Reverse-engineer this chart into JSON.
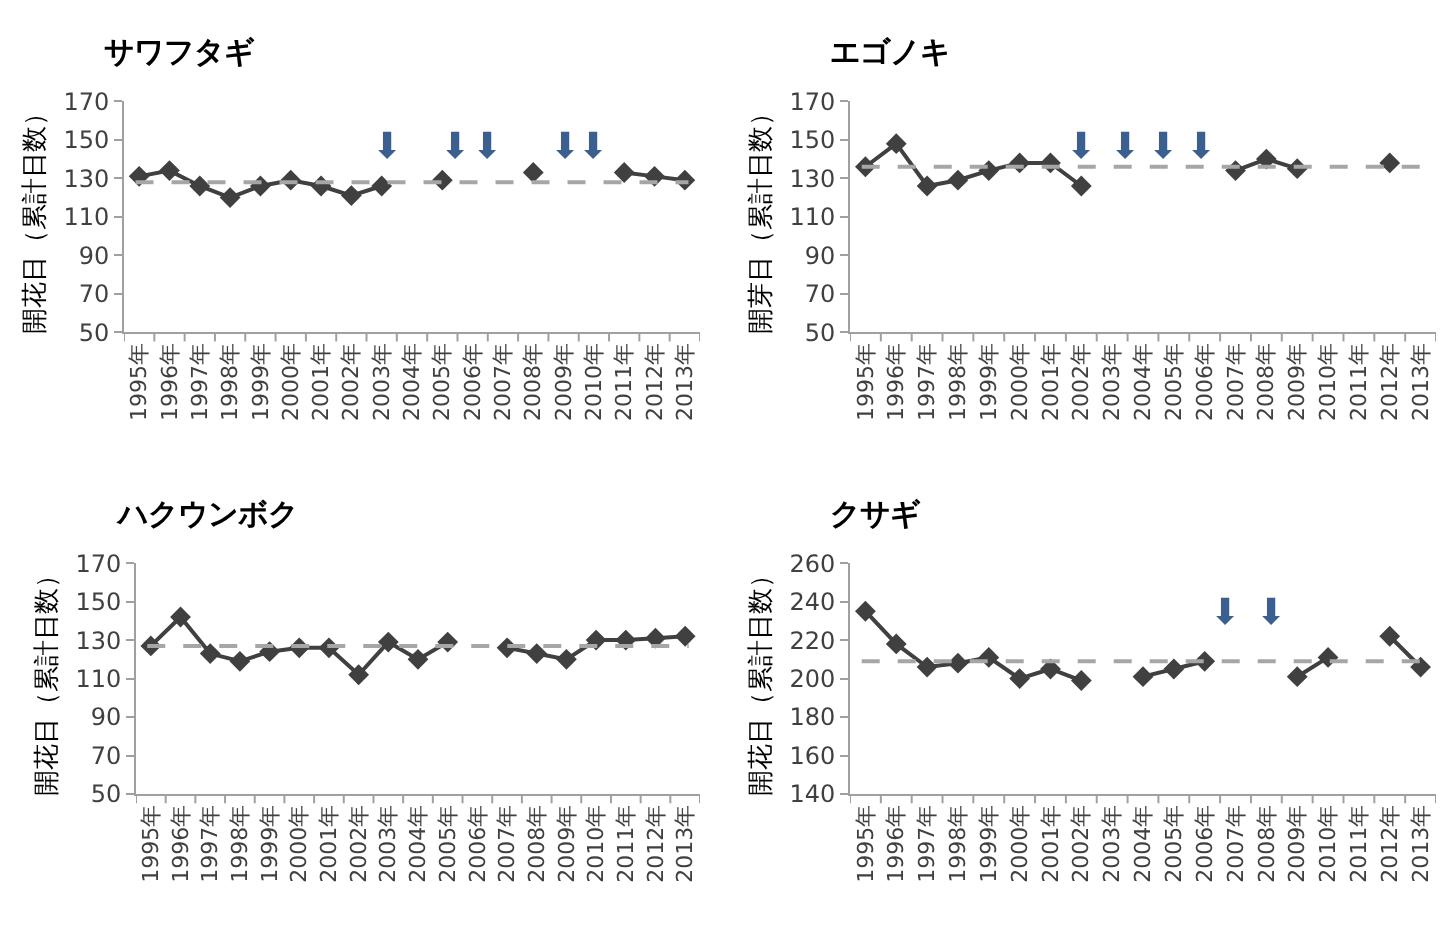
{
  "chart_data": [
    {
      "type": "line",
      "title": "サワフタギ",
      "ylabel": "開花日（累計日数）",
      "categories": [
        "1995年",
        "1996年",
        "1997年",
        "1998年",
        "1999年",
        "2000年",
        "2001年",
        "2002年",
        "2003年",
        "2004年",
        "2005年",
        "2006年",
        "2007年",
        "2008年",
        "2009年",
        "2010年",
        "2011年",
        "2012年",
        "2013年"
      ],
      "series": [
        {
          "color": "#404040",
          "values": [
            131,
            134,
            126,
            120,
            126,
            129,
            126,
            121,
            126,
            null,
            129,
            null,
            null,
            133,
            null,
            null,
            133,
            131,
            129
          ]
        }
      ],
      "ylim": [
        50,
        170
      ],
      "yticks": [
        50,
        70,
        90,
        110,
        130,
        150,
        170
      ],
      "marker": "diamond",
      "line_style": "solid",
      "ref_lines": [
        {
          "axis": "y",
          "value": 128,
          "color": "#a6a6a6",
          "line_style": "dashed"
        }
      ],
      "annotations": [
        "⬇",
        "⬇",
        "⬇",
        "⬇",
        "⬇"
      ]
    },
    {
      "type": "line",
      "title": "エゴノキ",
      "ylabel": "開芽日（累計日数）",
      "categories": [
        "1995年",
        "1996年",
        "1997年",
        "1998年",
        "1999年",
        "2000年",
        "2001年",
        "2002年",
        "2003年",
        "2004年",
        "2005年",
        "2006年",
        "2007年",
        "2008年",
        "2009年",
        "2010年",
        "2011年",
        "2012年",
        "2013年"
      ],
      "series": [
        {
          "color": "#404040",
          "values": [
            136,
            148,
            126,
            129,
            134,
            138,
            138,
            126,
            null,
            null,
            null,
            null,
            134,
            140,
            135,
            null,
            null,
            138,
            null
          ]
        }
      ],
      "ylim": [
        50,
        170
      ],
      "yticks": [
        50,
        70,
        90,
        110,
        130,
        150,
        170
      ],
      "marker": "diamond",
      "line_style": "solid",
      "ref_lines": [
        {
          "axis": "y",
          "value": 136,
          "color": "#a6a6a6",
          "line_style": "dashed"
        }
      ],
      "annotations": [
        "⬇",
        "⬇",
        "⬇",
        "⬇"
      ]
    },
    {
      "type": "line",
      "title": "ハクウンボク",
      "ylabel": "開花日（累計日数）",
      "categories": [
        "1995年",
        "1996年",
        "1997年",
        "1998年",
        "1999年",
        "2000年",
        "2001年",
        "2002年",
        "2003年",
        "2004年",
        "2005年",
        "2006年",
        "2007年",
        "2008年",
        "2009年",
        "2010年",
        "2011年",
        "2012年",
        "2013年"
      ],
      "series": [
        {
          "color": "#404040",
          "values": [
            127,
            142,
            123,
            119,
            124,
            126,
            126,
            112,
            129,
            120,
            129,
            null,
            126,
            123,
            120,
            130,
            130,
            131,
            132
          ]
        }
      ],
      "ylim": [
        50,
        170
      ],
      "yticks": [
        50,
        70,
        90,
        110,
        130,
        150,
        170
      ],
      "marker": "diamond",
      "line_style": "solid",
      "ref_lines": [
        {
          "axis": "y",
          "value": 127,
          "color": "#a6a6a6",
          "line_style": "dashed"
        }
      ]
    },
    {
      "type": "line",
      "title": "クサギ",
      "ylabel": "開花日（累計日数）",
      "categories": [
        "1995年",
        "1996年",
        "1997年",
        "1998年",
        "1999年",
        "2000年",
        "2001年",
        "2002年",
        "2003年",
        "2004年",
        "2005年",
        "2006年",
        "2007年",
        "2008年",
        "2009年",
        "2010年",
        "2011年",
        "2012年",
        "2013年"
      ],
      "series": [
        {
          "color": "#404040",
          "values": [
            235,
            218,
            206,
            208,
            211,
            200,
            205,
            199,
            null,
            201,
            205,
            209,
            null,
            null,
            201,
            211,
            null,
            222,
            206
          ]
        }
      ],
      "ylim": [
        140,
        260
      ],
      "yticks": [
        140,
        160,
        180,
        200,
        220,
        240,
        260
      ],
      "marker": "diamond",
      "line_style": "solid",
      "ref_lines": [
        {
          "axis": "y",
          "value": 209,
          "color": "#a6a6a6",
          "line_style": "dashed"
        }
      ],
      "annotations": [
        "⬇",
        "⬇"
      ]
    }
  ]
}
